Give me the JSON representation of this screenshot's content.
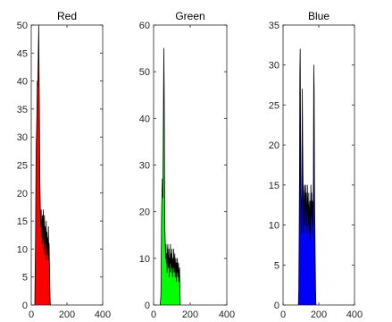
{
  "colors": {
    "background": "#ffffff",
    "axis": "#262626",
    "outline": "#000000"
  },
  "chart_data": [
    {
      "type": "area",
      "title": "Red",
      "fill_color": "#ff0000",
      "xlim": [
        0,
        400
      ],
      "ylim": [
        0,
        50
      ],
      "xticks": [
        0,
        200,
        400
      ],
      "yticks": [
        0,
        5,
        10,
        15,
        20,
        25,
        30,
        35,
        40,
        45,
        50
      ],
      "box": true,
      "grid": false,
      "x": [
        20,
        24,
        26,
        28,
        30,
        32,
        34,
        36,
        38,
        40,
        42,
        44,
        46,
        48,
        50,
        52,
        54,
        56,
        58,
        60,
        62,
        64,
        66,
        68,
        70,
        72,
        74,
        76,
        78,
        80,
        82,
        84,
        86,
        88,
        90,
        92,
        94,
        96,
        98,
        100,
        102,
        104,
        106,
        108
      ],
      "y": [
        0,
        12,
        22,
        29,
        31,
        35,
        40,
        39,
        42,
        46,
        50,
        41,
        33,
        22,
        19,
        15,
        14,
        17,
        13,
        12,
        16,
        11,
        15,
        17,
        13,
        10,
        16,
        9,
        14,
        12,
        11,
        15,
        8,
        13,
        10,
        12,
        9,
        14,
        8,
        11,
        7,
        3,
        0.5,
        0
      ]
    },
    {
      "type": "area",
      "title": "Green",
      "fill_color": "#00ff00",
      "xlim": [
        0,
        400
      ],
      "ylim": [
        0,
        60
      ],
      "xticks": [
        0,
        200,
        400
      ],
      "yticks": [
        0,
        10,
        20,
        30,
        40,
        50,
        60
      ],
      "box": true,
      "grid": false,
      "x": [
        36,
        40,
        42,
        44,
        46,
        48,
        50,
        52,
        54,
        56,
        58,
        60,
        62,
        64,
        66,
        68,
        70,
        72,
        74,
        76,
        78,
        80,
        82,
        84,
        86,
        88,
        90,
        92,
        94,
        96,
        98,
        100,
        102,
        104,
        106,
        108,
        110,
        112,
        114,
        116,
        118,
        120,
        122,
        124,
        126,
        128,
        130,
        132,
        134,
        136,
        138,
        140,
        142,
        144,
        146
      ],
      "y": [
        0,
        2,
        10,
        20,
        24,
        27,
        23,
        30,
        42,
        55,
        45,
        28,
        16,
        13,
        10,
        13,
        9,
        11,
        7,
        12,
        13,
        8,
        9,
        12,
        6,
        10,
        9,
        13,
        7,
        11,
        8,
        12,
        9,
        6,
        10,
        8,
        12,
        7,
        9,
        11,
        6,
        8,
        10,
        5,
        9,
        7,
        10,
        6,
        8,
        9,
        5,
        7,
        8,
        3,
        0
      ]
    },
    {
      "type": "area",
      "title": "Blue",
      "fill_color": "#0000ff",
      "xlim": [
        0,
        400
      ],
      "ylim": [
        0,
        35
      ],
      "xticks": [
        0,
        200,
        400
      ],
      "yticks": [
        0,
        5,
        10,
        15,
        20,
        25,
        30,
        35
      ],
      "box": true,
      "grid": false,
      "x": [
        86,
        88,
        90,
        92,
        94,
        96,
        98,
        100,
        102,
        104,
        106,
        108,
        110,
        112,
        114,
        116,
        118,
        120,
        122,
        124,
        126,
        128,
        130,
        132,
        134,
        136,
        138,
        140,
        142,
        144,
        146,
        148,
        150,
        152,
        154,
        156,
        158,
        160,
        162,
        164,
        166,
        168,
        170,
        172,
        174,
        176,
        178,
        180,
        182,
        184
      ],
      "y": [
        0,
        2,
        8,
        16,
        29,
        32,
        22,
        14,
        11,
        9,
        18,
        27,
        20,
        15,
        12,
        9,
        14,
        15,
        13,
        10,
        15,
        12,
        14,
        11,
        9,
        15,
        13,
        12,
        10,
        14,
        9,
        11,
        13,
        8,
        12,
        15,
        11,
        14,
        9,
        13,
        12,
        10,
        16,
        30,
        27,
        15,
        10,
        6,
        2,
        0
      ]
    }
  ]
}
